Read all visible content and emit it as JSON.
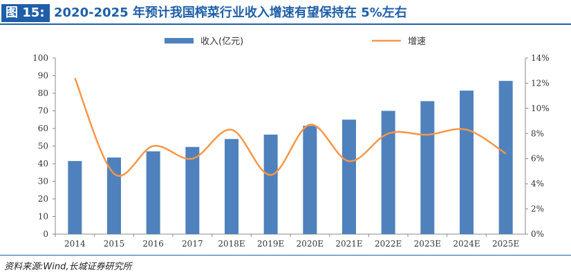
{
  "header": {
    "figure_label": "图 15:",
    "title": "2020-2025 年预计我国榨菜行业收入增速有望保持在 5%左右"
  },
  "footer": {
    "source": "资料来源:Wind,长城证券研究所"
  },
  "colors": {
    "accent": "#1f5fa8",
    "bar": "#4f81bd",
    "line": "#f79646"
  },
  "chart_data": {
    "type": "bar",
    "categories": [
      "2014",
      "2015",
      "2016",
      "2017",
      "2018E",
      "2019E",
      "2020E",
      "2021E",
      "2022E",
      "2023E",
      "2024E",
      "2025E"
    ],
    "series": [
      {
        "name": "收入(亿元)",
        "type": "bar",
        "axis": "left",
        "values": [
          41.5,
          43.5,
          47,
          49.5,
          54,
          56.5,
          61.5,
          65,
          70,
          75.5,
          81.5,
          87
        ]
      },
      {
        "name": "增速",
        "type": "line",
        "axis": "right",
        "values": [
          12.4,
          4.8,
          7.0,
          6.0,
          8.3,
          4.7,
          8.7,
          5.8,
          8.0,
          7.9,
          8.3,
          6.4
        ]
      }
    ],
    "y_left": {
      "min": 0,
      "max": 100,
      "step": 10,
      "ticks": [
        "0",
        "10",
        "20",
        "30",
        "40",
        "50",
        "60",
        "70",
        "80",
        "90",
        "100"
      ]
    },
    "y_right": {
      "min": 0,
      "max": 14,
      "step": 2,
      "ticks": [
        "0%",
        "2%",
        "4%",
        "6%",
        "8%",
        "10%",
        "12%",
        "14%"
      ]
    },
    "legend_position": "top",
    "grid": false
  }
}
